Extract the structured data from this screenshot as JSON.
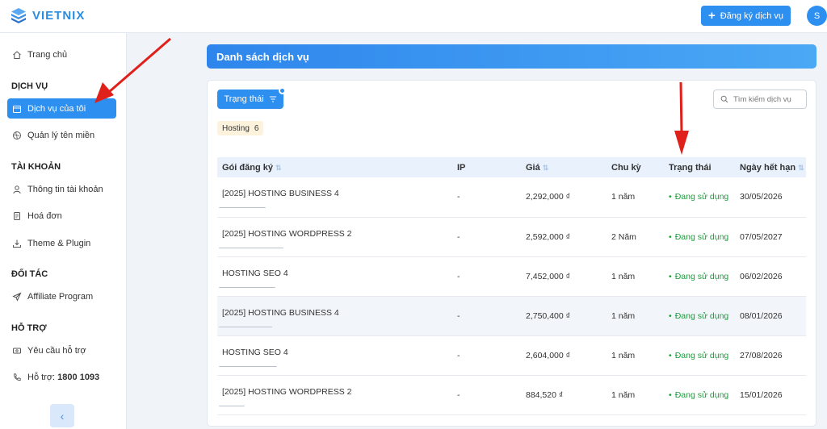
{
  "header": {
    "logo_text": "VIETNIX",
    "register_button": "Đăng ký dịch vụ",
    "avatar_initial": "S"
  },
  "sidebar": {
    "home": "Trang chủ",
    "sections": [
      {
        "title": "DỊCH VỤ",
        "items": [
          "Dịch vụ của tôi",
          "Quản lý tên miền"
        ]
      },
      {
        "title": "TÀI KHOẢN",
        "items": [
          "Thông tin tài khoản",
          "Hoá đơn",
          "Theme & Plugin"
        ]
      },
      {
        "title": "ĐỐI TÁC",
        "items": [
          "Affiliate Program"
        ]
      },
      {
        "title": "HỖ TRỢ",
        "items": [
          "Yêu cầu hỗ trợ"
        ]
      }
    ],
    "hotline_label": "Hỗ trợ: ",
    "hotline_number": "1800 1093",
    "active_item": "Dịch vụ của tôi"
  },
  "main": {
    "title": "Danh sách dịch vụ",
    "filter_button": "Trạng thái",
    "search_placeholder": "Tìm kiếm dịch vụ",
    "tag": {
      "label": "Hosting",
      "count": "6"
    },
    "columns": [
      "Gói đăng ký",
      "IP",
      "Giá",
      "Chu kỳ",
      "Trạng thái",
      "Ngày hết hạn"
    ],
    "rows": [
      {
        "name": "[2025] HOSTING BUSINESS 4",
        "ip": "-",
        "price": "2,292,000 ₫",
        "cycle": "1 năm",
        "status": "Đang sử dụng",
        "expiry": "30/05/2026"
      },
      {
        "name": "[2025] HOSTING WORDPRESS 2",
        "ip": "-",
        "price": "2,592,000 ₫",
        "cycle": "2 Năm",
        "status": "Đang sử dụng",
        "expiry": "07/05/2027"
      },
      {
        "name": "HOSTING SEO 4",
        "ip": "-",
        "price": "7,452,000 ₫",
        "cycle": "1 năm",
        "status": "Đang sử dụng",
        "expiry": "06/02/2026"
      },
      {
        "name": "[2025] HOSTING BUSINESS 4",
        "ip": "-",
        "price": "2,750,400 ₫",
        "cycle": "1 năm",
        "status": "Đang sử dụng",
        "expiry": "08/01/2026"
      },
      {
        "name": "HOSTING SEO 4",
        "ip": "-",
        "price": "2,604,000 ₫",
        "cycle": "1 năm",
        "status": "Đang sử dụng",
        "expiry": "27/08/2026"
      },
      {
        "name": "[2025] HOSTING WORDPRESS 2",
        "ip": "-",
        "price": "884,520 ₫",
        "cycle": "1 năm",
        "status": "Đang sử dụng",
        "expiry": "15/01/2026"
      }
    ]
  },
  "colors": {
    "accent": "#2d8ff0",
    "status_active": "#1a9e3a",
    "annotation_arrow": "#e0201b"
  },
  "icons": [
    "logo-icon",
    "plus-icon",
    "home-icon",
    "calendar-icon",
    "globe-icon",
    "user-icon",
    "invoice-icon",
    "download-icon",
    "send-icon",
    "ticket-icon",
    "phone-icon",
    "chevron-left-icon",
    "filter-icon",
    "search-icon",
    "sort-icon"
  ]
}
